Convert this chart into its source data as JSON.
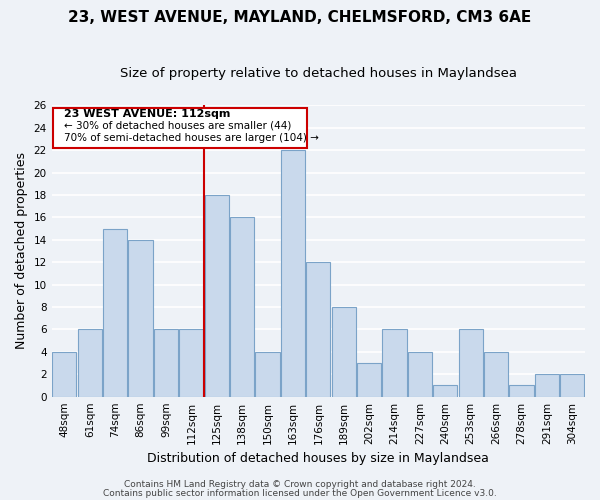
{
  "title1": "23, WEST AVENUE, MAYLAND, CHELMSFORD, CM3 6AE",
  "title2": "Size of property relative to detached houses in Maylandsea",
  "xlabel": "Distribution of detached houses by size in Maylandsea",
  "ylabel": "Number of detached properties",
  "bar_labels": [
    "48sqm",
    "61sqm",
    "74sqm",
    "86sqm",
    "99sqm",
    "112sqm",
    "125sqm",
    "138sqm",
    "150sqm",
    "163sqm",
    "176sqm",
    "189sqm",
    "202sqm",
    "214sqm",
    "227sqm",
    "240sqm",
    "253sqm",
    "266sqm",
    "278sqm",
    "291sqm",
    "304sqm"
  ],
  "bar_values": [
    4,
    6,
    15,
    14,
    6,
    6,
    18,
    16,
    4,
    22,
    12,
    8,
    3,
    6,
    4,
    1,
    6,
    4,
    1,
    2,
    2
  ],
  "bar_color": "#c9d9ec",
  "bar_edge_color": "#7ba3c8",
  "vline_index": 5,
  "vline_color": "#cc0000",
  "ylim": [
    0,
    26
  ],
  "yticks": [
    0,
    2,
    4,
    6,
    8,
    10,
    12,
    14,
    16,
    18,
    20,
    22,
    24,
    26
  ],
  "annotation_title": "23 WEST AVENUE: 112sqm",
  "annotation_line1": "← 30% of detached houses are smaller (44)",
  "annotation_line2": "70% of semi-detached houses are larger (104) →",
  "annotation_box_edge": "#cc0000",
  "footer1": "Contains HM Land Registry data © Crown copyright and database right 2024.",
  "footer2": "Contains public sector information licensed under the Open Government Licence v3.0.",
  "background_color": "#eef2f7",
  "grid_color": "#ffffff",
  "title_fontsize": 11,
  "subtitle_fontsize": 9.5,
  "axis_label_fontsize": 9,
  "tick_fontsize": 7.5,
  "footer_fontsize": 6.5
}
